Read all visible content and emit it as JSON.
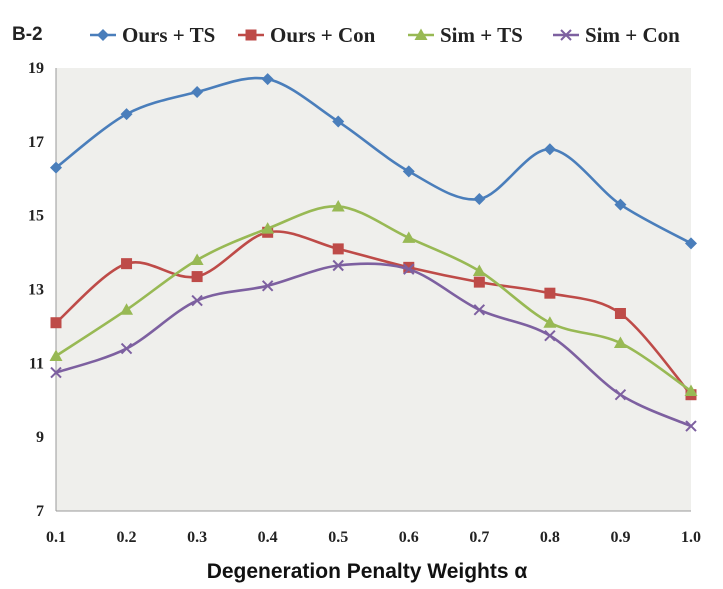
{
  "chart_data": {
    "type": "line",
    "panel_label": "B-2",
    "title": "",
    "xlabel": "Degeneration Penalty Weights α",
    "ylabel": "",
    "categories": [
      "0.1",
      "0.2",
      "0.3",
      "0.4",
      "0.5",
      "0.6",
      "0.7",
      "0.8",
      "0.9",
      "1.0"
    ],
    "ylim": [
      7,
      19
    ],
    "yticks": [
      "7",
      "9",
      "11",
      "13",
      "15",
      "17",
      "19"
    ],
    "grid": false,
    "legend_position": "top",
    "series": [
      {
        "name": "Ours + TS",
        "color": "#4a7ebb",
        "marker": "diamond",
        "values": [
          16.3,
          17.75,
          18.35,
          18.7,
          17.55,
          16.2,
          15.45,
          16.8,
          15.3,
          14.25
        ]
      },
      {
        "name": "Ours + Con",
        "color": "#be4b48",
        "marker": "square",
        "values": [
          12.1,
          13.7,
          13.35,
          14.55,
          14.1,
          13.6,
          13.2,
          12.9,
          12.35,
          10.15
        ]
      },
      {
        "name": "Sim + TS",
        "color": "#98b954",
        "marker": "triangle",
        "values": [
          11.2,
          12.45,
          13.8,
          14.65,
          15.25,
          14.4,
          13.5,
          12.1,
          11.55,
          10.25
        ]
      },
      {
        "name": "Sim + Con",
        "color": "#7d60a0",
        "marker": "x",
        "values": [
          10.75,
          11.4,
          12.7,
          13.1,
          13.65,
          13.55,
          12.45,
          11.75,
          10.15,
          9.3
        ]
      }
    ]
  }
}
